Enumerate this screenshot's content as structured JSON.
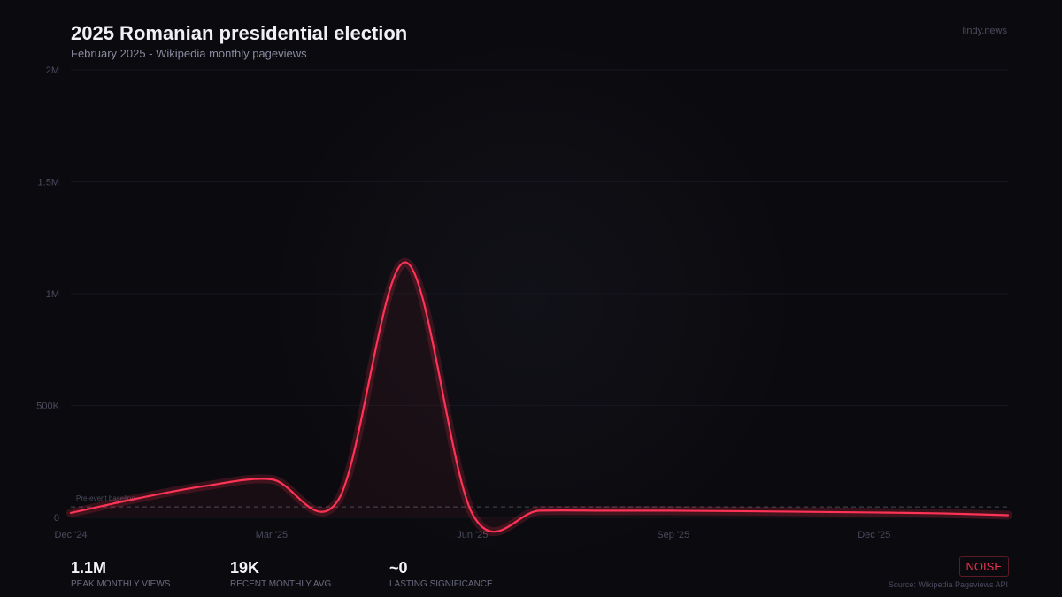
{
  "header": {
    "title": "2025 Romanian presidential election",
    "subtitle": "February 2025  -  Wikipedia monthly pageviews",
    "brand": "lindy.news"
  },
  "chart_data": {
    "type": "line",
    "title": "2025 Romanian presidential election",
    "x": [
      "Dec '24",
      "Jan '25",
      "Feb '25",
      "Mar '25",
      "Apr '25",
      "May '25",
      "Jun '25",
      "Jul '25",
      "Aug '25",
      "Sep '25",
      "Oct '25",
      "Nov '25",
      "Dec '25",
      "Jan '26",
      "Feb '26"
    ],
    "series": [
      {
        "values": [
          20000,
          85000,
          140000,
          170000,
          80000,
          1140000,
          15000,
          30000,
          30000,
          30000,
          28000,
          25000,
          22000,
          18000,
          10000
        ],
        "color": "#ff3355"
      }
    ],
    "x_tick_labels": [
      "Dec '24",
      "Mar '25",
      "Jun '25",
      "Sep '25",
      "Dec '25"
    ],
    "y_tick_labels": [
      "0",
      "500K",
      "1M",
      "1.5M",
      "2M"
    ],
    "y_ticks": [
      0,
      500000,
      1000000,
      1500000,
      2000000
    ],
    "ylim": [
      0,
      2000000
    ],
    "grid": true,
    "baseline": {
      "label": "Pre-event baseline",
      "value": 47000
    }
  },
  "stats": [
    {
      "value": "1.1M",
      "label": "PEAK MONTHLY VIEWS"
    },
    {
      "value": "19K",
      "label": "RECENT MONTHLY AVG"
    },
    {
      "value": "~0",
      "label": "LASTING SIGNIFICANCE"
    }
  ],
  "badge": "NOISE",
  "source": "Source: Wikipedia Pageviews API",
  "colors": {
    "accent": "#ff3355",
    "background": "#0b0b0f"
  }
}
